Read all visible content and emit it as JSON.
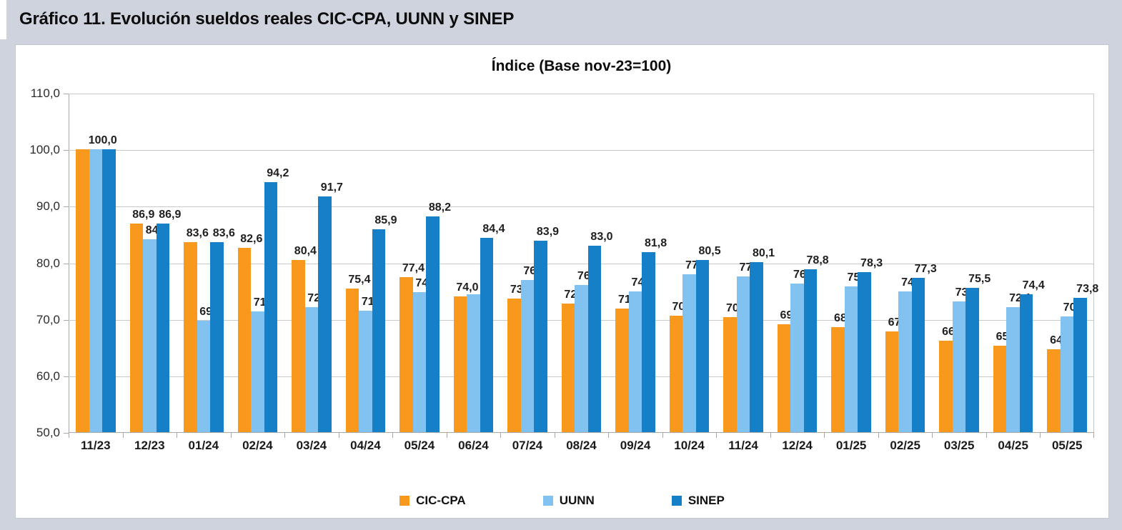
{
  "page": {
    "title": "Gráfico 11. Evolución sueldos reales CIC-CPA, UUNN y SINEP"
  },
  "chart_data": {
    "type": "bar",
    "title": "Índice (Base nov-23=100)",
    "categories": [
      "11/23",
      "12/23",
      "01/24",
      "02/24",
      "03/24",
      "04/24",
      "05/24",
      "06/24",
      "07/24",
      "08/24",
      "09/24",
      "10/24",
      "11/24",
      "12/24",
      "01/25",
      "02/25",
      "03/25",
      "04/25",
      "05/25"
    ],
    "series": [
      {
        "name": "CIC-CPA",
        "color": "#F8981D",
        "values": [
          100.0,
          86.9,
          83.6,
          82.6,
          80.4,
          75.4,
          77.4,
          74.0,
          73.6,
          72.8,
          71.8,
          70.6,
          70.3,
          69.1,
          68.6,
          67.8,
          66.2,
          65.3,
          64.7
        ],
        "labels": [
          "",
          "86,9",
          "83,6",
          "82,6",
          "80,4",
          "75,4",
          "77,4",
          "74,0",
          "73,6",
          "72,8",
          "71,8",
          "70,6",
          "70,3",
          "69,1",
          "68,6",
          "67,8",
          "66,2",
          "65,3",
          "64,7"
        ]
      },
      {
        "name": "UUNN",
        "color": "#82C2F0",
        "values": [
          100.0,
          84.1,
          69.7,
          71.4,
          72.1,
          71.5,
          74.8,
          74.4,
          76.9,
          76.0,
          74.9,
          77.9,
          77.6,
          76.3,
          75.8,
          74.9,
          73.1,
          72.1,
          70.5
        ],
        "labels": [
          "100,0",
          "84,1",
          "69,7",
          "71,4",
          "72,1",
          "71,5",
          "74,8",
          "",
          "76,9",
          "76,0",
          "74,9",
          "77,9",
          "77,6",
          "76,3",
          "75,8",
          "74,9",
          "73,1",
          "72,1",
          "70,5"
        ]
      },
      {
        "name": "SINEP",
        "color": "#1580C8",
        "values": [
          100.0,
          86.9,
          83.6,
          94.2,
          91.7,
          85.9,
          88.2,
          84.4,
          83.9,
          83.0,
          81.8,
          80.5,
          80.1,
          78.8,
          78.3,
          77.3,
          75.5,
          74.4,
          73.8
        ],
        "labels": [
          "",
          "86,9",
          "83,6",
          "94,2",
          "91,7",
          "85,9",
          "88,2",
          "84,4",
          "83,9",
          "83,0",
          "81,8",
          "80,5",
          "80,1",
          "78,8",
          "78,3",
          "77,3",
          "75,5",
          "74,4",
          "73,8"
        ]
      }
    ],
    "ylim": [
      50,
      110
    ],
    "ytick_step": 10,
    "ytick_labels": [
      "110,0",
      "100,0",
      "90,0",
      "80,0",
      "70,0",
      "60,0",
      "50,0"
    ],
    "grid": true,
    "legend_position": "bottom"
  }
}
